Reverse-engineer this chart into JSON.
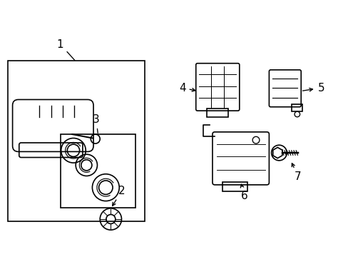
{
  "title": "",
  "background_color": "#ffffff",
  "line_color": "#000000",
  "label_color": "#000000",
  "label_fontsize": 11,
  "figsize": [
    4.89,
    3.6
  ],
  "dpi": 100
}
